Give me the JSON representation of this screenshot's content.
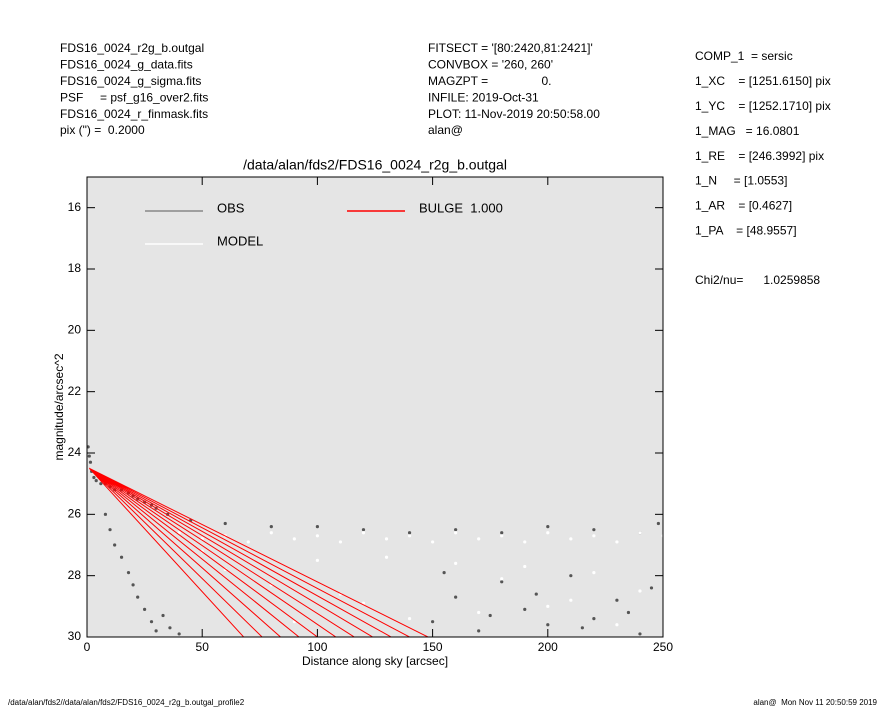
{
  "header": {
    "left": [
      "FDS16_0024_r2g_b.outgal",
      "FDS16_0024_g_data.fits",
      "FDS16_0024_g_sigma.fits",
      "PSF     = psf_g16_over2.fits",
      "FDS16_0024_r_finmask.fits",
      "pix (\") =  0.2000"
    ],
    "middle": [
      "FITSECT = '[80:2420,81:2421]'",
      "CONVBOX = '260, 260'",
      "MAGZPT =                0.",
      "INFILE: 2019-Oct-31",
      "PLOT: 11-Nov-2019 20:50:58.00",
      "alan@"
    ],
    "right": [
      "COMP_1  = sersic",
      "1_XC    = [1251.6150] pix",
      "1_YC    = [1252.1710] pix",
      "1_MAG   = 16.0801",
      "1_RE    = [246.3992] pix",
      "1_N     = [1.0553]",
      "1_AR    = [0.4627]",
      "1_PA    = [48.9557]"
    ],
    "chi2": "Chi2/nu=      1.0259858"
  },
  "footer": {
    "left": "/data/alan/fds2//data/alan/fds2/FDS16_0024_r2g_b.outgal_profile2",
    "right": "alan@  Mon Nov 11 20:50:59 2019"
  },
  "chart_data": {
    "type": "scatter",
    "title": "/data/alan/fds2/FDS16_0024_r2g_b.outgal",
    "x_label": "Distance along sky [arcsec]",
    "y_label": "magnitude/arcsec^2",
    "xlim": [
      0,
      250
    ],
    "ylim": [
      30,
      15
    ],
    "xticks": [
      0,
      50,
      100,
      150,
      200,
      250
    ],
    "yticks": [
      16,
      18,
      20,
      22,
      24,
      26,
      28,
      30
    ],
    "series": [
      {
        "name": "OBS",
        "color": "#555555",
        "style": "markers",
        "x": [
          0.5,
          1,
          1.5,
          2,
          3,
          4,
          6,
          8,
          10,
          12,
          15,
          18,
          20,
          22,
          25,
          28,
          30,
          35,
          8,
          10,
          12,
          15,
          18,
          20,
          22,
          25,
          28,
          30,
          33,
          36,
          40,
          45,
          60,
          80,
          100,
          120,
          140,
          160,
          180,
          200,
          220,
          240,
          248,
          150,
          160,
          170,
          180,
          190,
          200,
          210,
          220,
          230,
          240,
          245,
          155,
          175,
          195,
          215,
          235
        ],
        "values": [
          23.8,
          24.1,
          24.3,
          24.6,
          24.8,
          24.9,
          25.0,
          25.0,
          25.1,
          25.2,
          25.2,
          25.3,
          25.4,
          25.5,
          25.6,
          25.7,
          25.8,
          26.0,
          26.0,
          26.5,
          27.0,
          27.4,
          27.9,
          28.3,
          28.7,
          29.1,
          29.5,
          29.8,
          29.3,
          29.7,
          29.9,
          26.2,
          26.3,
          26.4,
          26.4,
          26.5,
          26.6,
          26.5,
          26.6,
          26.4,
          26.5,
          26.6,
          26.3,
          29.5,
          28.7,
          29.8,
          28.2,
          29.1,
          29.6,
          28.0,
          29.4,
          28.8,
          29.9,
          28.4,
          27.9,
          29.3,
          28.6,
          29.7,
          29.2
        ]
      },
      {
        "name": "MODEL",
        "color": "#ffffff",
        "style": "markers",
        "x": [
          40,
          50,
          60,
          70,
          80,
          90,
          100,
          110,
          120,
          130,
          140,
          150,
          160,
          170,
          180,
          190,
          200,
          210,
          220,
          230,
          240,
          250,
          60,
          80,
          100,
          120,
          140,
          160,
          180,
          200,
          220,
          240,
          90,
          110,
          130,
          170,
          190,
          210,
          230,
          50
        ],
        "values": [
          26.6,
          26.8,
          26.7,
          26.9,
          26.6,
          26.8,
          26.7,
          26.9,
          26.6,
          26.8,
          26.7,
          26.9,
          26.6,
          26.8,
          26.7,
          26.9,
          26.6,
          26.8,
          26.7,
          26.9,
          26.6,
          26.7,
          27.8,
          28.3,
          27.5,
          28.9,
          29.4,
          27.6,
          28.1,
          29.0,
          27.9,
          28.5,
          29.5,
          28.6,
          27.4,
          29.2,
          27.7,
          28.8,
          29.6,
          27.2
        ]
      },
      {
        "name": "BULGE  1.000",
        "color": "#ff0000",
        "style": "line",
        "x": [
          1,
          68,
          1,
          76,
          1,
          84,
          1,
          92,
          1,
          100,
          1,
          108,
          1,
          116,
          1,
          124,
          1,
          132,
          1,
          140,
          1,
          148
        ],
        "values": [
          24.5,
          30,
          24.5,
          30,
          24.5,
          30,
          24.5,
          30,
          24.5,
          30,
          24.5,
          30,
          24.5,
          30,
          24.5,
          30,
          24.5,
          30,
          24.5,
          30,
          24.5,
          30
        ]
      }
    ]
  }
}
